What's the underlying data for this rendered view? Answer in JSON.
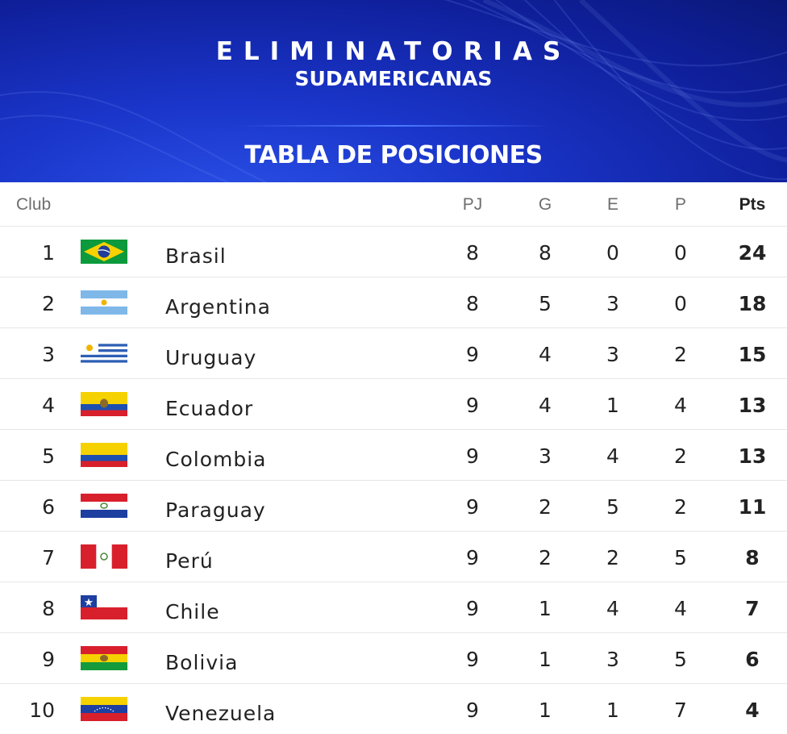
{
  "header": {
    "line1": "ELIMINATORIAS",
    "line2": "SUDAMERICANAS",
    "line3": "TABLA DE POSICIONES"
  },
  "table": {
    "columns": {
      "club": "Club",
      "pj": "PJ",
      "g": "G",
      "e": "E",
      "p": "P",
      "pts": "Pts"
    },
    "rows": [
      {
        "pos": "1",
        "team": "Brasil",
        "pj": "8",
        "g": "8",
        "e": "0",
        "p": "0",
        "pts": "24",
        "flag": "brazil-flag-icon"
      },
      {
        "pos": "2",
        "team": "Argentina",
        "pj": "8",
        "g": "5",
        "e": "3",
        "p": "0",
        "pts": "18",
        "flag": "argentina-flag-icon"
      },
      {
        "pos": "3",
        "team": "Uruguay",
        "pj": "9",
        "g": "4",
        "e": "3",
        "p": "2",
        "pts": "15",
        "flag": "uruguay-flag-icon"
      },
      {
        "pos": "4",
        "team": "Ecuador",
        "pj": "9",
        "g": "4",
        "e": "1",
        "p": "4",
        "pts": "13",
        "flag": "ecuador-flag-icon"
      },
      {
        "pos": "5",
        "team": "Colombia",
        "pj": "9",
        "g": "3",
        "e": "4",
        "p": "2",
        "pts": "13",
        "flag": "colombia-flag-icon"
      },
      {
        "pos": "6",
        "team": "Paraguay",
        "pj": "9",
        "g": "2",
        "e": "5",
        "p": "2",
        "pts": "11",
        "flag": "paraguay-flag-icon"
      },
      {
        "pos": "7",
        "team": "Perú",
        "pj": "9",
        "g": "2",
        "e": "2",
        "p": "5",
        "pts": "8",
        "flag": "peru-flag-icon"
      },
      {
        "pos": "8",
        "team": "Chile",
        "pj": "9",
        "g": "1",
        "e": "4",
        "p": "4",
        "pts": "7",
        "flag": "chile-flag-icon"
      },
      {
        "pos": "9",
        "team": "Bolivia",
        "pj": "9",
        "g": "1",
        "e": "3",
        "p": "5",
        "pts": "6",
        "flag": "bolivia-flag-icon"
      },
      {
        "pos": "10",
        "team": "Venezuela",
        "pj": "9",
        "g": "1",
        "e": "1",
        "p": "7",
        "pts": "4",
        "flag": "venezuela-flag-icon"
      }
    ]
  },
  "colors": {
    "banner_blue": "#1a35c9",
    "row_divider": "#e6e6e6",
    "header_text": "#6e6e6e",
    "body_text": "#222222"
  }
}
